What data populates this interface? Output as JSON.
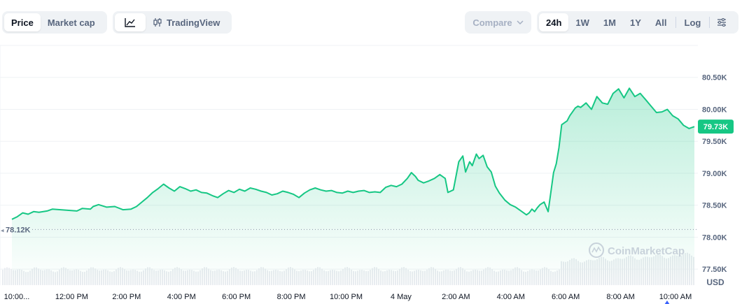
{
  "toolbar": {
    "price_label": "Price",
    "market_cap_label": "Market cap",
    "tradingview_label": "TradingView",
    "compare_label": "Compare",
    "ranges": [
      "24h",
      "1W",
      "1M",
      "1Y",
      "All"
    ],
    "active_range": "24h",
    "log_label": "Log"
  },
  "chart_data": {
    "type": "area",
    "currency_label": "USD",
    "watermark": "CoinMarketCap",
    "ylim": [
      77250,
      81000
    ],
    "y_ticks": [
      "80.50K",
      "80.00K",
      "79.50K",
      "79.00K",
      "78.50K",
      "78.00K",
      "77.50K"
    ],
    "y_tick_values": [
      80500,
      80000,
      79500,
      79000,
      78500,
      78000,
      77500
    ],
    "x_ticks": [
      "10:00...",
      "12:00 PM",
      "2:00 PM",
      "4:00 PM",
      "6:00 PM",
      "8:00 PM",
      "10:00 PM",
      "4 May",
      "2:00 AM",
      "4:00 AM",
      "6:00 AM",
      "8:00 AM",
      "10:00 AM"
    ],
    "x_tick_hours": [
      0,
      2,
      4,
      6,
      8,
      10,
      12,
      14,
      16,
      18,
      20,
      22,
      24
    ],
    "open_price": 78120,
    "open_label": "78.12K",
    "current_price": 79730,
    "current_label": "79.73K",
    "grid": true,
    "colors": {
      "line": "#16c784",
      "badge": "#16c784",
      "grid": "#eff2f5",
      "volume": "#e9ecf0"
    },
    "series": [
      {
        "points": [
          [
            0.0,
            78280
          ],
          [
            0.2,
            78320
          ],
          [
            0.4,
            78380
          ],
          [
            0.6,
            78360
          ],
          [
            0.8,
            78400
          ],
          [
            1.0,
            78390
          ],
          [
            1.3,
            78410
          ],
          [
            1.5,
            78440
          ],
          [
            1.8,
            78430
          ],
          [
            2.1,
            78420
          ],
          [
            2.4,
            78410
          ],
          [
            2.6,
            78450
          ],
          [
            2.9,
            78440
          ],
          [
            3.0,
            78480
          ],
          [
            3.2,
            78510
          ],
          [
            3.5,
            78470
          ],
          [
            3.8,
            78480
          ],
          [
            4.1,
            78430
          ],
          [
            4.4,
            78440
          ],
          [
            4.6,
            78480
          ],
          [
            4.8,
            78550
          ],
          [
            5.0,
            78620
          ],
          [
            5.2,
            78700
          ],
          [
            5.4,
            78760
          ],
          [
            5.6,
            78830
          ],
          [
            5.8,
            78770
          ],
          [
            6.0,
            78720
          ],
          [
            6.2,
            78790
          ],
          [
            6.4,
            78760
          ],
          [
            6.6,
            78720
          ],
          [
            6.8,
            78740
          ],
          [
            7.0,
            78700
          ],
          [
            7.2,
            78690
          ],
          [
            7.4,
            78650
          ],
          [
            7.6,
            78620
          ],
          [
            7.8,
            78680
          ],
          [
            8.0,
            78730
          ],
          [
            8.2,
            78700
          ],
          [
            8.4,
            78750
          ],
          [
            8.6,
            78720
          ],
          [
            8.8,
            78770
          ],
          [
            9.0,
            78750
          ],
          [
            9.2,
            78720
          ],
          [
            9.4,
            78700
          ],
          [
            9.6,
            78660
          ],
          [
            9.8,
            78680
          ],
          [
            10.0,
            78720
          ],
          [
            10.2,
            78700
          ],
          [
            10.4,
            78670
          ],
          [
            10.6,
            78620
          ],
          [
            10.8,
            78690
          ],
          [
            11.0,
            78740
          ],
          [
            11.2,
            78770
          ],
          [
            11.4,
            78740
          ],
          [
            11.6,
            78720
          ],
          [
            11.8,
            78730
          ],
          [
            12.0,
            78700
          ],
          [
            12.2,
            78690
          ],
          [
            12.4,
            78720
          ],
          [
            12.6,
            78700
          ],
          [
            12.8,
            78720
          ],
          [
            13.0,
            78730
          ],
          [
            13.2,
            78700
          ],
          [
            13.4,
            78710
          ],
          [
            13.6,
            78700
          ],
          [
            13.8,
            78780
          ],
          [
            14.0,
            78810
          ],
          [
            14.2,
            78790
          ],
          [
            14.4,
            78830
          ],
          [
            14.6,
            78920
          ],
          [
            14.75,
            79010
          ],
          [
            14.9,
            78950
          ],
          [
            15.0,
            78890
          ],
          [
            15.2,
            78850
          ],
          [
            15.4,
            78880
          ],
          [
            15.6,
            78920
          ],
          [
            15.8,
            78980
          ],
          [
            16.0,
            78920
          ],
          [
            16.1,
            78700
          ],
          [
            16.3,
            78740
          ],
          [
            16.5,
            79180
          ],
          [
            16.65,
            79270
          ],
          [
            16.75,
            79020
          ],
          [
            16.9,
            79180
          ],
          [
            17.0,
            79120
          ],
          [
            17.15,
            79300
          ],
          [
            17.25,
            79230
          ],
          [
            17.4,
            79280
          ],
          [
            17.55,
            79100
          ],
          [
            17.7,
            79020
          ],
          [
            17.85,
            78800
          ],
          [
            18.0,
            78690
          ],
          [
            18.2,
            78580
          ],
          [
            18.4,
            78510
          ],
          [
            18.6,
            78470
          ],
          [
            18.8,
            78410
          ],
          [
            19.0,
            78350
          ],
          [
            19.1,
            78380
          ],
          [
            19.2,
            78440
          ],
          [
            19.3,
            78400
          ],
          [
            19.4,
            78460
          ],
          [
            19.5,
            78510
          ],
          [
            19.65,
            78550
          ],
          [
            19.8,
            78400
          ],
          [
            19.9,
            78700
          ],
          [
            20.0,
            79010
          ],
          [
            20.1,
            79150
          ],
          [
            20.2,
            79400
          ],
          [
            20.3,
            79760
          ],
          [
            20.4,
            79790
          ],
          [
            20.5,
            79820
          ],
          [
            20.6,
            79900
          ],
          [
            20.7,
            79960
          ],
          [
            20.8,
            80020
          ],
          [
            20.9,
            80050
          ],
          [
            21.0,
            80030
          ],
          [
            21.2,
            80100
          ],
          [
            21.4,
            80000
          ],
          [
            21.6,
            80200
          ],
          [
            21.8,
            80100
          ],
          [
            22.0,
            80080
          ],
          [
            22.2,
            80250
          ],
          [
            22.4,
            80320
          ],
          [
            22.6,
            80180
          ],
          [
            22.8,
            80330
          ],
          [
            23.0,
            80200
          ],
          [
            23.2,
            80250
          ],
          [
            23.4,
            80150
          ],
          [
            23.6,
            80050
          ],
          [
            23.8,
            79950
          ],
          [
            24.0,
            79960
          ],
          [
            24.2,
            80000
          ],
          [
            24.4,
            79900
          ],
          [
            24.6,
            79850
          ],
          [
            24.8,
            79750
          ],
          [
            25.0,
            79700
          ],
          [
            25.2,
            79730
          ]
        ]
      }
    ]
  }
}
